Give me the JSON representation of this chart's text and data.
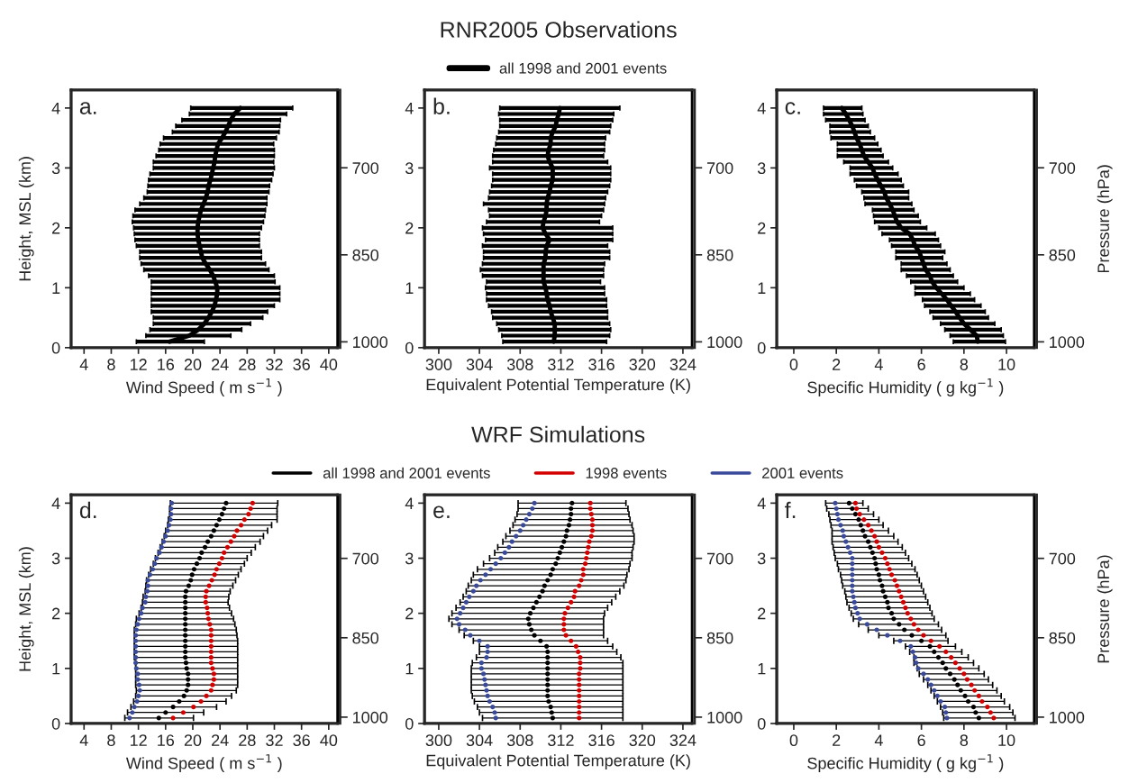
{
  "chart_data": [
    {
      "type": "line",
      "orientation": "horizontal",
      "xlabel": "Wind Speed ( m s$^{−1}$ )",
      "ylabel": "Height, MSL (km)",
      "annotations": [
        "a."
      ],
      "xlim": [
        2.1,
        41.3
      ],
      "xticks": [
        4,
        8,
        12,
        16,
        20,
        24,
        28,
        32,
        36,
        40
      ],
      "ylim": [
        0,
        4.3
      ],
      "yticks": [
        0,
        1,
        2,
        3,
        4
      ],
      "y2lim": [
        1010,
        566
      ],
      "y2ticks": [
        700,
        850,
        1000
      ],
      "x": [
        0.1,
        0.2,
        0.3,
        0.4,
        0.5,
        0.6,
        0.7,
        0.8,
        0.9,
        1.0,
        1.1,
        1.2,
        1.3,
        1.4,
        1.5,
        1.6,
        1.7,
        1.8,
        1.9,
        2.0,
        2.1,
        2.2,
        2.3,
        2.4,
        2.5,
        2.6,
        2.7,
        2.8,
        2.9,
        3.0,
        3.1,
        3.2,
        3.3,
        3.4,
        3.5,
        3.6,
        3.7,
        3.8,
        3.9,
        4.0
      ],
      "series": [
        {
          "color": "#000000",
          "values": [
            16.6,
            19.5,
            20.8,
            21.7,
            22.3,
            22.8,
            23.2,
            23.4,
            23.6,
            23.6,
            23.3,
            23.0,
            22.5,
            21.9,
            21.4,
            21.2,
            21.0,
            20.8,
            20.7,
            20.7,
            20.8,
            21.0,
            21.2,
            21.6,
            21.9,
            22.2,
            22.3,
            22.6,
            22.8,
            23.0,
            23.2,
            23.3,
            23.5,
            23.7,
            24.3,
            24.8,
            25.2,
            25.6,
            26.1,
            27.0
          ],
          "errors": [
            [
              11.7,
              21.7
            ],
            [
              13.1,
              25.6
            ],
            [
              13.7,
              27.2
            ],
            [
              14.2,
              28.5
            ],
            [
              14.2,
              30.3
            ],
            [
              13.9,
              31.0
            ],
            [
              13.9,
              32.0
            ],
            [
              13.9,
              32.8
            ],
            [
              13.9,
              32.8
            ],
            [
              13.9,
              32.8
            ],
            [
              13.9,
              32.1
            ],
            [
              13.5,
              32.0
            ],
            [
              12.8,
              31.2
            ],
            [
              12.4,
              30.7
            ],
            [
              12.2,
              30.1
            ],
            [
              12.2,
              30.1
            ],
            [
              11.7,
              29.8
            ],
            [
              11.5,
              29.8
            ],
            [
              11.4,
              29.8
            ],
            [
              11.3,
              30.1
            ],
            [
              11.1,
              30.4
            ],
            [
              11.2,
              30.6
            ],
            [
              11.5,
              30.7
            ],
            [
              12.2,
              30.9
            ],
            [
              12.8,
              30.9
            ],
            [
              13.3,
              31.2
            ],
            [
              13.4,
              31.3
            ],
            [
              13.5,
              31.6
            ],
            [
              13.7,
              31.8
            ],
            [
              14.2,
              32.0
            ],
            [
              14.2,
              31.9
            ],
            [
              14.6,
              32.0
            ],
            [
              15.0,
              32.0
            ],
            [
              15.2,
              31.9
            ],
            [
              15.7,
              32.3
            ],
            [
              17.0,
              32.7
            ],
            [
              17.5,
              32.8
            ],
            [
              18.4,
              32.9
            ],
            [
              19.5,
              33.8
            ],
            [
              19.7,
              34.7
            ]
          ]
        }
      ]
    },
    {
      "type": "line",
      "orientation": "horizontal",
      "title": "RNR2005 Observations",
      "legend": "top",
      "xlabel": "Equivalent Potential Temperature (K)",
      "annotations": [
        "b."
      ],
      "xlim": [
        298.6,
        324.9
      ],
      "xticks": [
        300,
        304,
        308,
        312,
        316,
        320,
        324
      ],
      "ylim": [
        0,
        4.3
      ],
      "yticks": [
        0,
        1,
        2,
        3,
        4
      ],
      "y2lim": [
        1010,
        566
      ],
      "y2ticks": [
        700,
        850,
        1000
      ],
      "x": [
        0.1,
        0.2,
        0.3,
        0.4,
        0.5,
        0.6,
        0.7,
        0.8,
        0.9,
        1.0,
        1.1,
        1.2,
        1.3,
        1.4,
        1.5,
        1.6,
        1.7,
        1.8,
        1.9,
        2.0,
        2.1,
        2.2,
        2.3,
        2.4,
        2.5,
        2.6,
        2.7,
        2.8,
        2.9,
        3.0,
        3.1,
        3.2,
        3.3,
        3.4,
        3.5,
        3.6,
        3.7,
        3.8,
        3.9,
        4.0
      ],
      "series": [
        {
          "name": "all 1998 and 2001 events",
          "color": "#000000",
          "values": [
            311.3,
            311.4,
            311.4,
            311.4,
            311.2,
            311.0,
            310.9,
            310.7,
            310.6,
            310.5,
            310.3,
            310.3,
            310.3,
            310.3,
            310.5,
            310.5,
            310.6,
            310.9,
            310.5,
            310.2,
            310.3,
            310.5,
            310.6,
            310.6,
            310.7,
            310.9,
            311.0,
            311.2,
            311.2,
            311.2,
            310.9,
            310.7,
            310.8,
            311.0,
            311.0,
            311.2,
            311.5,
            311.6,
            311.8,
            311.9
          ],
          "errors": [
            [
              306.3,
              316.5
            ],
            [
              306.2,
              316.8
            ],
            [
              305.9,
              316.9
            ],
            [
              305.7,
              316.8
            ],
            [
              305.3,
              316.6
            ],
            [
              305.2,
              316.6
            ],
            [
              304.9,
              316.5
            ],
            [
              304.7,
              316.5
            ],
            [
              304.7,
              316.3
            ],
            [
              304.6,
              316.3
            ],
            [
              304.7,
              315.9
            ],
            [
              304.3,
              316.2
            ],
            [
              304.1,
              316.2
            ],
            [
              304.3,
              316.3
            ],
            [
              304.4,
              316.8
            ],
            [
              304.4,
              316.8
            ],
            [
              304.3,
              316.6
            ],
            [
              304.6,
              317.1
            ],
            [
              304.4,
              317.1
            ],
            [
              304.3,
              317.1
            ],
            [
              304.7,
              315.8
            ],
            [
              305.0,
              316.0
            ],
            [
              304.9,
              316.2
            ],
            [
              304.4,
              316.3
            ],
            [
              304.9,
              316.4
            ],
            [
              305.0,
              316.6
            ],
            [
              305.2,
              316.8
            ],
            [
              305.3,
              316.9
            ],
            [
              305.3,
              316.9
            ],
            [
              305.0,
              316.9
            ],
            [
              305.3,
              316.6
            ],
            [
              305.3,
              316.2
            ],
            [
              305.4,
              316.3
            ],
            [
              305.6,
              316.3
            ],
            [
              305.7,
              316.4
            ],
            [
              305.9,
              316.8
            ],
            [
              306.0,
              316.9
            ],
            [
              306.0,
              317.1
            ],
            [
              305.9,
              317.2
            ],
            [
              306.0,
              317.8
            ]
          ]
        }
      ]
    },
    {
      "type": "line",
      "orientation": "horizontal",
      "xlabel": "Specific Humidity ( g kg$^{−1}$ )",
      "y2label": "Pressure (hPa)",
      "annotations": [
        "c."
      ],
      "xlim": [
        -0.8,
        11.3
      ],
      "xticks": [
        0,
        2,
        4,
        6,
        8,
        10
      ],
      "ylim": [
        0,
        4.3
      ],
      "yticks": [
        0,
        1,
        2,
        3,
        4
      ],
      "y2lim": [
        1010,
        566
      ],
      "y2ticks": [
        700,
        850,
        1000
      ],
      "x": [
        0.1,
        0.2,
        0.3,
        0.4,
        0.5,
        0.6,
        0.7,
        0.8,
        0.9,
        1.0,
        1.1,
        1.2,
        1.3,
        1.4,
        1.5,
        1.6,
        1.7,
        1.8,
        1.9,
        2.0,
        2.1,
        2.2,
        2.3,
        2.4,
        2.5,
        2.6,
        2.7,
        2.8,
        2.9,
        3.0,
        3.1,
        3.2,
        3.3,
        3.4,
        3.5,
        3.6,
        3.7,
        3.8,
        3.9,
        4.0
      ],
      "series": [
        {
          "color": "#000000",
          "values": [
            8.65,
            8.6,
            8.3,
            8.0,
            7.8,
            7.6,
            7.4,
            7.2,
            6.95,
            6.7,
            6.5,
            6.4,
            6.2,
            6.1,
            6.0,
            5.9,
            5.7,
            5.6,
            5.45,
            5.05,
            4.85,
            4.75,
            4.65,
            4.5,
            4.35,
            4.25,
            4.1,
            3.95,
            3.8,
            3.7,
            3.5,
            3.3,
            3.2,
            3.1,
            2.95,
            2.85,
            2.75,
            2.6,
            2.45,
            2.25
          ],
          "errors": [
            [
              7.5,
              9.95
            ],
            [
              7.35,
              9.85
            ],
            [
              7.1,
              9.75
            ],
            [
              6.9,
              9.45
            ],
            [
              6.55,
              9.15
            ],
            [
              6.4,
              9.0
            ],
            [
              6.15,
              8.8
            ],
            [
              6.05,
              8.5
            ],
            [
              5.7,
              8.3
            ],
            [
              5.7,
              8.0
            ],
            [
              5.5,
              7.7
            ],
            [
              5.3,
              7.5
            ],
            [
              5.05,
              7.35
            ],
            [
              5.05,
              7.2
            ],
            [
              4.8,
              7.0
            ],
            [
              4.8,
              7.1
            ],
            [
              4.6,
              6.9
            ],
            [
              4.5,
              6.8
            ],
            [
              4.15,
              6.65
            ],
            [
              4.0,
              6.25
            ],
            [
              3.8,
              5.95
            ],
            [
              3.75,
              5.85
            ],
            [
              3.7,
              5.65
            ],
            [
              3.35,
              5.55
            ],
            [
              3.3,
              5.4
            ],
            [
              3.2,
              5.4
            ],
            [
              2.95,
              5.15
            ],
            [
              2.85,
              5.05
            ],
            [
              2.65,
              4.9
            ],
            [
              2.65,
              4.65
            ],
            [
              2.35,
              4.45
            ],
            [
              2.05,
              4.2
            ],
            [
              2.05,
              4.1
            ],
            [
              2.05,
              3.95
            ],
            [
              1.75,
              3.8
            ],
            [
              1.7,
              3.6
            ],
            [
              1.7,
              3.5
            ],
            [
              1.5,
              3.35
            ],
            [
              1.4,
              3.25
            ],
            [
              1.4,
              3.2
            ]
          ]
        }
      ]
    },
    {
      "type": "scatter",
      "orientation": "horizontal",
      "marker": "circle",
      "xlabel": "Wind Speed ( m s$^{−1}$ )",
      "ylabel": "Height, MSL (km)",
      "annotations": [
        "d."
      ],
      "xlim": [
        2.1,
        41.3
      ],
      "xticks": [
        4,
        8,
        12,
        16,
        20,
        24,
        28,
        32,
        36,
        40
      ],
      "ylim": [
        0,
        4.15
      ],
      "yticks": [
        0,
        1,
        2,
        3,
        4
      ],
      "y2lim": [
        1012,
        580
      ],
      "y2ticks": [
        700,
        850,
        1000
      ],
      "x": [
        0.1,
        0.2,
        0.3,
        0.4,
        0.5,
        0.6,
        0.7,
        0.8,
        0.9,
        1.0,
        1.1,
        1.2,
        1.3,
        1.4,
        1.5,
        1.6,
        1.7,
        1.8,
        1.9,
        2.0,
        2.1,
        2.2,
        2.3,
        2.4,
        2.5,
        2.6,
        2.7,
        2.8,
        2.9,
        3.0,
        3.1,
        3.2,
        3.3,
        3.4,
        3.5,
        3.6,
        3.7,
        3.8,
        3.9,
        4.0
      ],
      "series": [
        {
          "color": "#000000",
          "values": [
            15.0,
            16.0,
            17.1,
            18.0,
            18.7,
            19.1,
            19.3,
            19.3,
            19.3,
            19.1,
            19.0,
            18.9,
            18.9,
            18.9,
            18.9,
            18.9,
            18.9,
            18.9,
            18.9,
            18.9,
            18.9,
            18.9,
            18.9,
            19.0,
            19.4,
            19.7,
            19.9,
            20.2,
            20.6,
            21.0,
            21.3,
            21.8,
            22.2,
            22.7,
            23.1,
            23.5,
            23.9,
            24.3,
            24.6,
            24.9
          ],
          "errors": [
            [
              10.0,
              20.1
            ],
            [
              10.4,
              21.6
            ],
            [
              10.9,
              23.5
            ],
            [
              11.3,
              24.9
            ],
            [
              11.6,
              25.7
            ],
            [
              11.7,
              26.4
            ],
            [
              11.6,
              26.6
            ],
            [
              11.6,
              26.6
            ],
            [
              11.6,
              26.6
            ],
            [
              11.6,
              26.6
            ],
            [
              11.6,
              26.6
            ],
            [
              11.4,
              26.6
            ],
            [
              11.4,
              26.6
            ],
            [
              11.4,
              26.6
            ],
            [
              11.4,
              26.6
            ],
            [
              11.4,
              26.5
            ],
            [
              11.4,
              26.4
            ],
            [
              11.6,
              26.2
            ],
            [
              11.7,
              26.0
            ],
            [
              12.1,
              25.7
            ],
            [
              12.4,
              25.4
            ],
            [
              12.6,
              25.2
            ],
            [
              12.7,
              25.3
            ],
            [
              13.0,
              25.5
            ],
            [
              13.1,
              25.9
            ],
            [
              13.2,
              26.3
            ],
            [
              13.5,
              26.7
            ],
            [
              13.8,
              27.1
            ],
            [
              14.2,
              27.6
            ],
            [
              14.5,
              28.0
            ],
            [
              14.9,
              28.6
            ],
            [
              15.2,
              29.2
            ],
            [
              15.5,
              29.9
            ],
            [
              15.8,
              30.4
            ],
            [
              16.0,
              31.0
            ],
            [
              16.3,
              31.6
            ],
            [
              16.4,
              32.4
            ],
            [
              16.6,
              32.4
            ],
            [
              16.6,
              32.4
            ],
            [
              16.7,
              32.5
            ]
          ]
        },
        {
          "color": "#d40000",
          "values": [
            17.1,
            18.6,
            20.1,
            21.2,
            22.0,
            22.7,
            22.9,
            23.1,
            23.1,
            22.9,
            22.7,
            22.7,
            22.7,
            22.7,
            22.7,
            22.7,
            22.7,
            22.5,
            22.3,
            22.2,
            22.1,
            21.9,
            21.9,
            22.0,
            22.4,
            22.8,
            23.2,
            23.5,
            23.9,
            24.3,
            24.6,
            25.1,
            25.6,
            26.1,
            26.5,
            27.1,
            27.6,
            28.2,
            28.5,
            28.8
          ]
        },
        {
          "color": "#3a4a9a",
          "values": [
            10.7,
            11.1,
            11.4,
            11.8,
            12.0,
            12.2,
            12.1,
            11.9,
            11.9,
            11.7,
            11.6,
            11.6,
            11.6,
            11.6,
            11.6,
            11.6,
            11.7,
            11.9,
            12.1,
            12.4,
            12.6,
            13.0,
            13.1,
            13.3,
            13.4,
            13.4,
            13.7,
            14.1,
            14.4,
            14.7,
            15.1,
            15.4,
            15.7,
            16.0,
            16.3,
            16.5,
            16.7,
            16.8,
            16.8,
            16.9
          ]
        }
      ]
    },
    {
      "type": "scatter",
      "orientation": "horizontal",
      "marker": "circle",
      "title": "WRF Simulations",
      "legend": "top",
      "xlabel": "Equivalent Potential Temperature (K)",
      "annotations": [
        "e."
      ],
      "xlim": [
        298.6,
        324.9
      ],
      "xticks": [
        300,
        304,
        308,
        312,
        316,
        320,
        324
      ],
      "ylim": [
        0,
        4.15
      ],
      "yticks": [
        0,
        1,
        2,
        3,
        4
      ],
      "y2lim": [
        1012,
        580
      ],
      "y2ticks": [
        700,
        850,
        1000
      ],
      "x": [
        0.1,
        0.2,
        0.3,
        0.4,
        0.5,
        0.6,
        0.7,
        0.8,
        0.9,
        1.0,
        1.1,
        1.2,
        1.3,
        1.4,
        1.5,
        1.6,
        1.7,
        1.8,
        1.9,
        2.0,
        2.1,
        2.2,
        2.3,
        2.4,
        2.5,
        2.6,
        2.7,
        2.8,
        2.9,
        3.0,
        3.1,
        3.2,
        3.3,
        3.4,
        3.5,
        3.6,
        3.7,
        3.8,
        3.9,
        4.0
      ],
      "series": [
        {
          "name": "all 1998 and 2001 events",
          "color": "#000000",
          "values": [
            311.2,
            311.1,
            311.0,
            310.8,
            310.7,
            310.7,
            310.7,
            310.7,
            310.7,
            310.7,
            310.7,
            310.7,
            310.7,
            310.6,
            310.0,
            309.4,
            309.1,
            308.9,
            308.8,
            309.0,
            309.3,
            309.6,
            309.9,
            310.2,
            310.4,
            310.7,
            311.0,
            311.2,
            311.5,
            311.7,
            311.9,
            312.1,
            312.3,
            312.5,
            312.6,
            312.8,
            312.9,
            313.0,
            313.0,
            313.1
          ],
          "errors": [
            [
              304.3,
              318.1
            ],
            [
              304.0,
              318.1
            ],
            [
              303.8,
              318.1
            ],
            [
              303.5,
              318.1
            ],
            [
              303.3,
              318.1
            ],
            [
              303.2,
              318.1
            ],
            [
              303.2,
              318.1
            ],
            [
              303.2,
              318.1
            ],
            [
              303.2,
              318.1
            ],
            [
              303.2,
              318.1
            ],
            [
              303.3,
              318.1
            ],
            [
              303.7,
              317.9
            ],
            [
              304.0,
              317.5
            ],
            [
              304.0,
              317.1
            ],
            [
              303.4,
              316.6
            ],
            [
              302.5,
              316.2
            ],
            [
              302.0,
              316.2
            ],
            [
              301.3,
              316.2
            ],
            [
              301.0,
              316.2
            ],
            [
              301.3,
              316.3
            ],
            [
              301.7,
              316.6
            ],
            [
              302.1,
              317.0
            ],
            [
              302.4,
              317.4
            ],
            [
              302.7,
              317.8
            ],
            [
              302.9,
              318.2
            ],
            [
              303.2,
              318.4
            ],
            [
              303.4,
              318.5
            ],
            [
              303.8,
              318.7
            ],
            [
              304.4,
              318.8
            ],
            [
              305.0,
              319.0
            ],
            [
              305.5,
              319.0
            ],
            [
              305.8,
              319.1
            ],
            [
              306.3,
              319.2
            ],
            [
              306.6,
              319.2
            ],
            [
              307.0,
              319.1
            ],
            [
              307.3,
              319.0
            ],
            [
              307.5,
              318.8
            ],
            [
              307.7,
              318.7
            ],
            [
              307.8,
              318.6
            ],
            [
              307.8,
              318.4
            ]
          ]
        },
        {
          "name": "1998 events",
          "color": "#d40000",
          "values": [
            313.8,
            313.8,
            313.8,
            313.8,
            313.8,
            313.8,
            313.8,
            313.8,
            313.8,
            313.9,
            313.9,
            313.9,
            313.7,
            313.5,
            313.0,
            312.5,
            312.3,
            312.3,
            312.3,
            312.4,
            312.7,
            313.0,
            313.3,
            313.4,
            313.8,
            314.0,
            314.2,
            314.2,
            314.4,
            314.5,
            314.6,
            314.7,
            314.8,
            315.0,
            315.1,
            315.1,
            315.1,
            315.0,
            314.9,
            314.9
          ]
        },
        {
          "name": "2001 events",
          "color": "#3a4a9a",
          "values": [
            305.6,
            305.5,
            305.3,
            305.0,
            304.8,
            304.7,
            304.6,
            304.5,
            304.4,
            304.2,
            304.2,
            304.7,
            304.8,
            304.8,
            304.0,
            303.1,
            302.6,
            302.0,
            301.8,
            302.1,
            302.4,
            302.7,
            303.0,
            303.4,
            303.7,
            304.1,
            304.6,
            305.1,
            305.6,
            306.1,
            306.5,
            306.9,
            307.2,
            307.6,
            308.0,
            308.3,
            308.6,
            308.9,
            309.2,
            309.4
          ]
        }
      ]
    },
    {
      "type": "scatter",
      "orientation": "horizontal",
      "marker": "circle",
      "xlabel": "Specific Humidity ( g kg$^{−1}$ )",
      "y2label": "Pressure (hPa)",
      "annotations": [
        "f."
      ],
      "xlim": [
        -0.8,
        11.3
      ],
      "xticks": [
        0,
        2,
        4,
        6,
        8,
        10
      ],
      "ylim": [
        0,
        4.15
      ],
      "yticks": [
        0,
        1,
        2,
        3,
        4
      ],
      "y2lim": [
        1012,
        580
      ],
      "y2ticks": [
        700,
        850,
        1000
      ],
      "x": [
        0.1,
        0.2,
        0.3,
        0.4,
        0.5,
        0.6,
        0.7,
        0.8,
        0.9,
        1.0,
        1.1,
        1.2,
        1.3,
        1.4,
        1.5,
        1.6,
        1.7,
        1.8,
        1.9,
        2.0,
        2.1,
        2.2,
        2.3,
        2.4,
        2.5,
        2.6,
        2.7,
        2.8,
        2.9,
        3.0,
        3.1,
        3.2,
        3.3,
        3.4,
        3.5,
        3.6,
        3.7,
        3.8,
        3.9,
        4.0
      ],
      "series": [
        {
          "color": "#000000",
          "values": [
            8.7,
            8.55,
            8.45,
            8.2,
            8.05,
            7.85,
            7.7,
            7.55,
            7.35,
            7.15,
            7.0,
            6.8,
            6.6,
            6.4,
            6.0,
            5.55,
            5.2,
            4.95,
            4.7,
            4.6,
            4.45,
            4.4,
            4.3,
            4.2,
            4.15,
            4.05,
            4.0,
            3.9,
            3.85,
            3.8,
            3.7,
            3.6,
            3.5,
            3.35,
            3.25,
            3.15,
            3.05,
            2.9,
            2.75,
            2.6
          ],
          "errors": [
            [
              7.05,
              10.4
            ],
            [
              7.0,
              10.3
            ],
            [
              6.9,
              10.15
            ],
            [
              6.75,
              9.9
            ],
            [
              6.6,
              9.75
            ],
            [
              6.45,
              9.55
            ],
            [
              6.3,
              9.35
            ],
            [
              6.1,
              9.15
            ],
            [
              5.9,
              8.95
            ],
            [
              5.8,
              8.7
            ],
            [
              5.65,
              8.45
            ],
            [
              5.65,
              8.2
            ],
            [
              5.45,
              7.9
            ],
            [
              5.25,
              7.6
            ],
            [
              4.7,
              7.25
            ],
            [
              4.0,
              7.15
            ],
            [
              3.5,
              6.95
            ],
            [
              3.05,
              6.8
            ],
            [
              2.8,
              6.6
            ],
            [
              2.7,
              6.5
            ],
            [
              2.6,
              6.4
            ],
            [
              2.5,
              6.3
            ],
            [
              2.45,
              6.2
            ],
            [
              2.4,
              6.1
            ],
            [
              2.3,
              6.0
            ],
            [
              2.25,
              5.9
            ],
            [
              2.2,
              5.8
            ],
            [
              2.1,
              5.7
            ],
            [
              2.05,
              5.55
            ],
            [
              1.95,
              5.4
            ],
            [
              1.9,
              5.25
            ],
            [
              1.85,
              5.1
            ],
            [
              1.8,
              4.9
            ],
            [
              1.8,
              4.7
            ],
            [
              1.8,
              4.45
            ],
            [
              1.75,
              4.2
            ],
            [
              1.7,
              4.0
            ],
            [
              1.65,
              3.75
            ],
            [
              1.55,
              3.5
            ],
            [
              1.5,
              3.25
            ]
          ]
        },
        {
          "color": "#d40000",
          "values": [
            9.4,
            9.25,
            9.1,
            8.85,
            8.7,
            8.5,
            8.35,
            8.15,
            8.0,
            7.8,
            7.6,
            7.4,
            7.15,
            6.85,
            6.45,
            6.1,
            5.85,
            5.65,
            5.5,
            5.35,
            5.25,
            5.15,
            5.05,
            4.95,
            4.85,
            4.75,
            4.6,
            4.5,
            4.4,
            4.3,
            4.15,
            4.0,
            3.9,
            3.8,
            3.65,
            3.5,
            3.3,
            3.1,
            2.95,
            2.9
          ]
        },
        {
          "color": "#3a4a9a",
          "values": [
            7.2,
            7.15,
            7.1,
            6.9,
            6.75,
            6.6,
            6.45,
            6.3,
            6.1,
            5.85,
            5.75,
            5.7,
            5.6,
            5.5,
            5.0,
            4.4,
            3.9,
            3.45,
            3.1,
            3.0,
            2.9,
            2.85,
            2.8,
            2.75,
            2.75,
            2.75,
            2.75,
            2.75,
            2.75,
            2.75,
            2.65,
            2.55,
            2.45,
            2.35,
            2.3,
            2.2,
            2.1,
            2.05,
            2.0,
            1.95
          ]
        }
      ]
    }
  ]
}
